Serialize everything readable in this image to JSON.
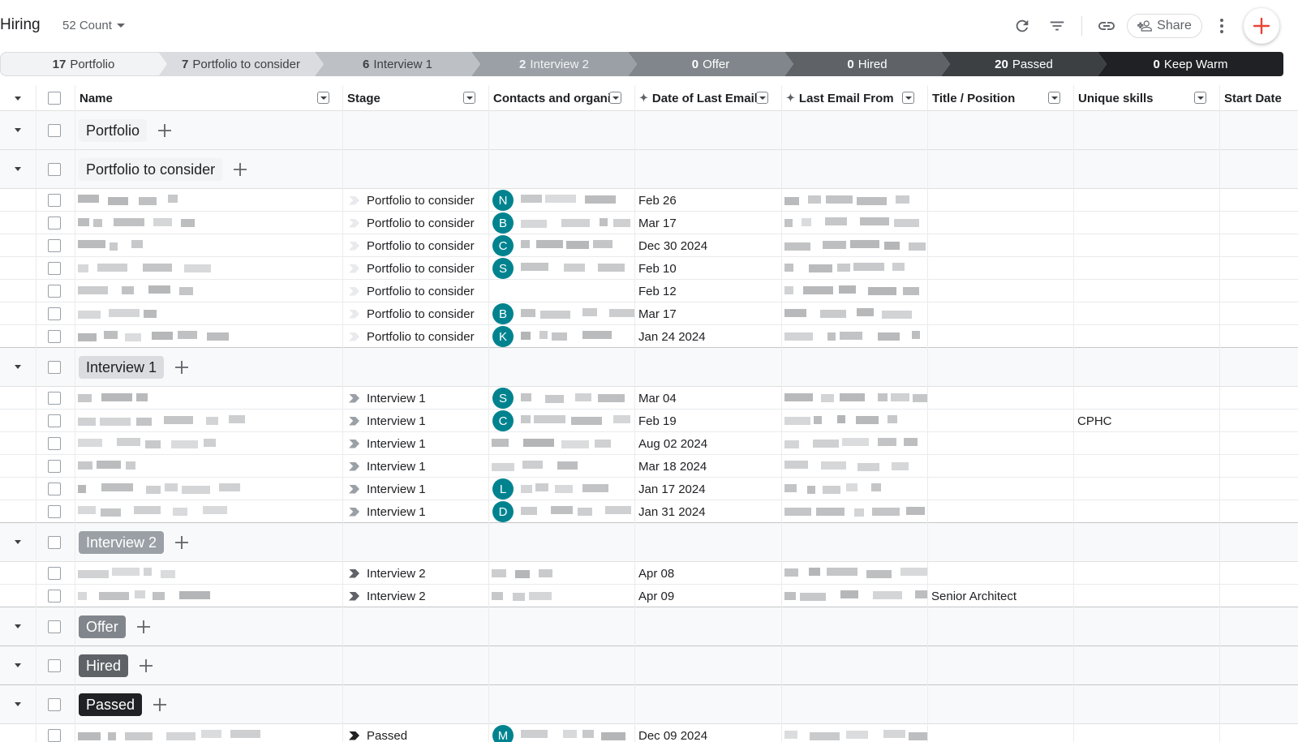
{
  "header": {
    "title": "Hiring",
    "count_label": "52 Count",
    "share_label": "Share"
  },
  "icons": {
    "refresh": "refresh-icon",
    "filter": "filter-icon",
    "link": "link-icon",
    "share": "person-add-icon",
    "more": "more-vert-icon",
    "add": "plus-icon"
  },
  "colors": {
    "accent": "#ea4335",
    "avatar": "#00838f"
  },
  "pipeline": [
    {
      "count": "17",
      "label": "Portfolio"
    },
    {
      "count": "7",
      "label": "Portfolio to consider"
    },
    {
      "count": "6",
      "label": "Interview 1"
    },
    {
      "count": "2",
      "label": "Interview 2"
    },
    {
      "count": "0",
      "label": "Offer"
    },
    {
      "count": "0",
      "label": "Hired"
    },
    {
      "count": "20",
      "label": "Passed"
    },
    {
      "count": "0",
      "label": "Keep Warm"
    }
  ],
  "columns": [
    "Name",
    "Stage",
    "Contacts and organizations",
    "Date of Last Email",
    "Last Email From",
    "Title / Position",
    "Unique skills",
    "Start Date"
  ],
  "groups": [
    {
      "label": "Portfolio",
      "rows": []
    },
    {
      "label": "Portfolio to consider",
      "rows": [
        {
          "stage": "Portfolio to consider",
          "avatar": "N",
          "date": "Feb 26",
          "title": "",
          "skills": ""
        },
        {
          "stage": "Portfolio to consider",
          "avatar": "B",
          "date": "Mar 17",
          "title": "",
          "skills": ""
        },
        {
          "stage": "Portfolio to consider",
          "avatar": "C",
          "date": "Dec 30 2024",
          "title": "",
          "skills": ""
        },
        {
          "stage": "Portfolio to consider",
          "avatar": "S",
          "date": "Feb 10",
          "title": "",
          "skills": ""
        },
        {
          "stage": "Portfolio to consider",
          "avatar": "",
          "date": "Feb 12",
          "title": "",
          "skills": ""
        },
        {
          "stage": "Portfolio to consider",
          "avatar": "B",
          "date": "Mar 17",
          "title": "",
          "skills": ""
        },
        {
          "stage": "Portfolio to consider",
          "avatar": "K",
          "date": "Jan 24 2024",
          "title": "",
          "skills": ""
        }
      ]
    },
    {
      "label": "Interview 1",
      "rows": [
        {
          "stage": "Interview 1",
          "avatar": "S",
          "date": "Mar 04",
          "title": "",
          "skills": ""
        },
        {
          "stage": "Interview 1",
          "avatar": "C",
          "date": "Feb 19",
          "title": "",
          "skills": "CPHC"
        },
        {
          "stage": "Interview 1",
          "avatar": "",
          "date": "Aug 02 2024",
          "title": "",
          "skills": ""
        },
        {
          "stage": "Interview 1",
          "avatar": "",
          "date": "Mar 18 2024",
          "title": "",
          "skills": ""
        },
        {
          "stage": "Interview 1",
          "avatar": "L",
          "date": "Jan 17 2024",
          "title": "",
          "skills": ""
        },
        {
          "stage": "Interview 1",
          "avatar": "D",
          "date": "Jan 31 2024",
          "title": "",
          "skills": ""
        }
      ]
    },
    {
      "label": "Interview 2",
      "rows": [
        {
          "stage": "Interview 2",
          "avatar": "",
          "date": "Apr 08",
          "title": "",
          "skills": ""
        },
        {
          "stage": "Interview 2",
          "avatar": "",
          "date": "Apr 09",
          "title": "Senior Architect",
          "skills": ""
        }
      ]
    },
    {
      "label": "Offer",
      "rows": []
    },
    {
      "label": "Hired",
      "rows": []
    },
    {
      "label": "Passed",
      "rows": [
        {
          "stage": "Passed",
          "avatar": "M",
          "date": "Dec 09 2024",
          "title": "",
          "skills": ""
        }
      ]
    }
  ]
}
